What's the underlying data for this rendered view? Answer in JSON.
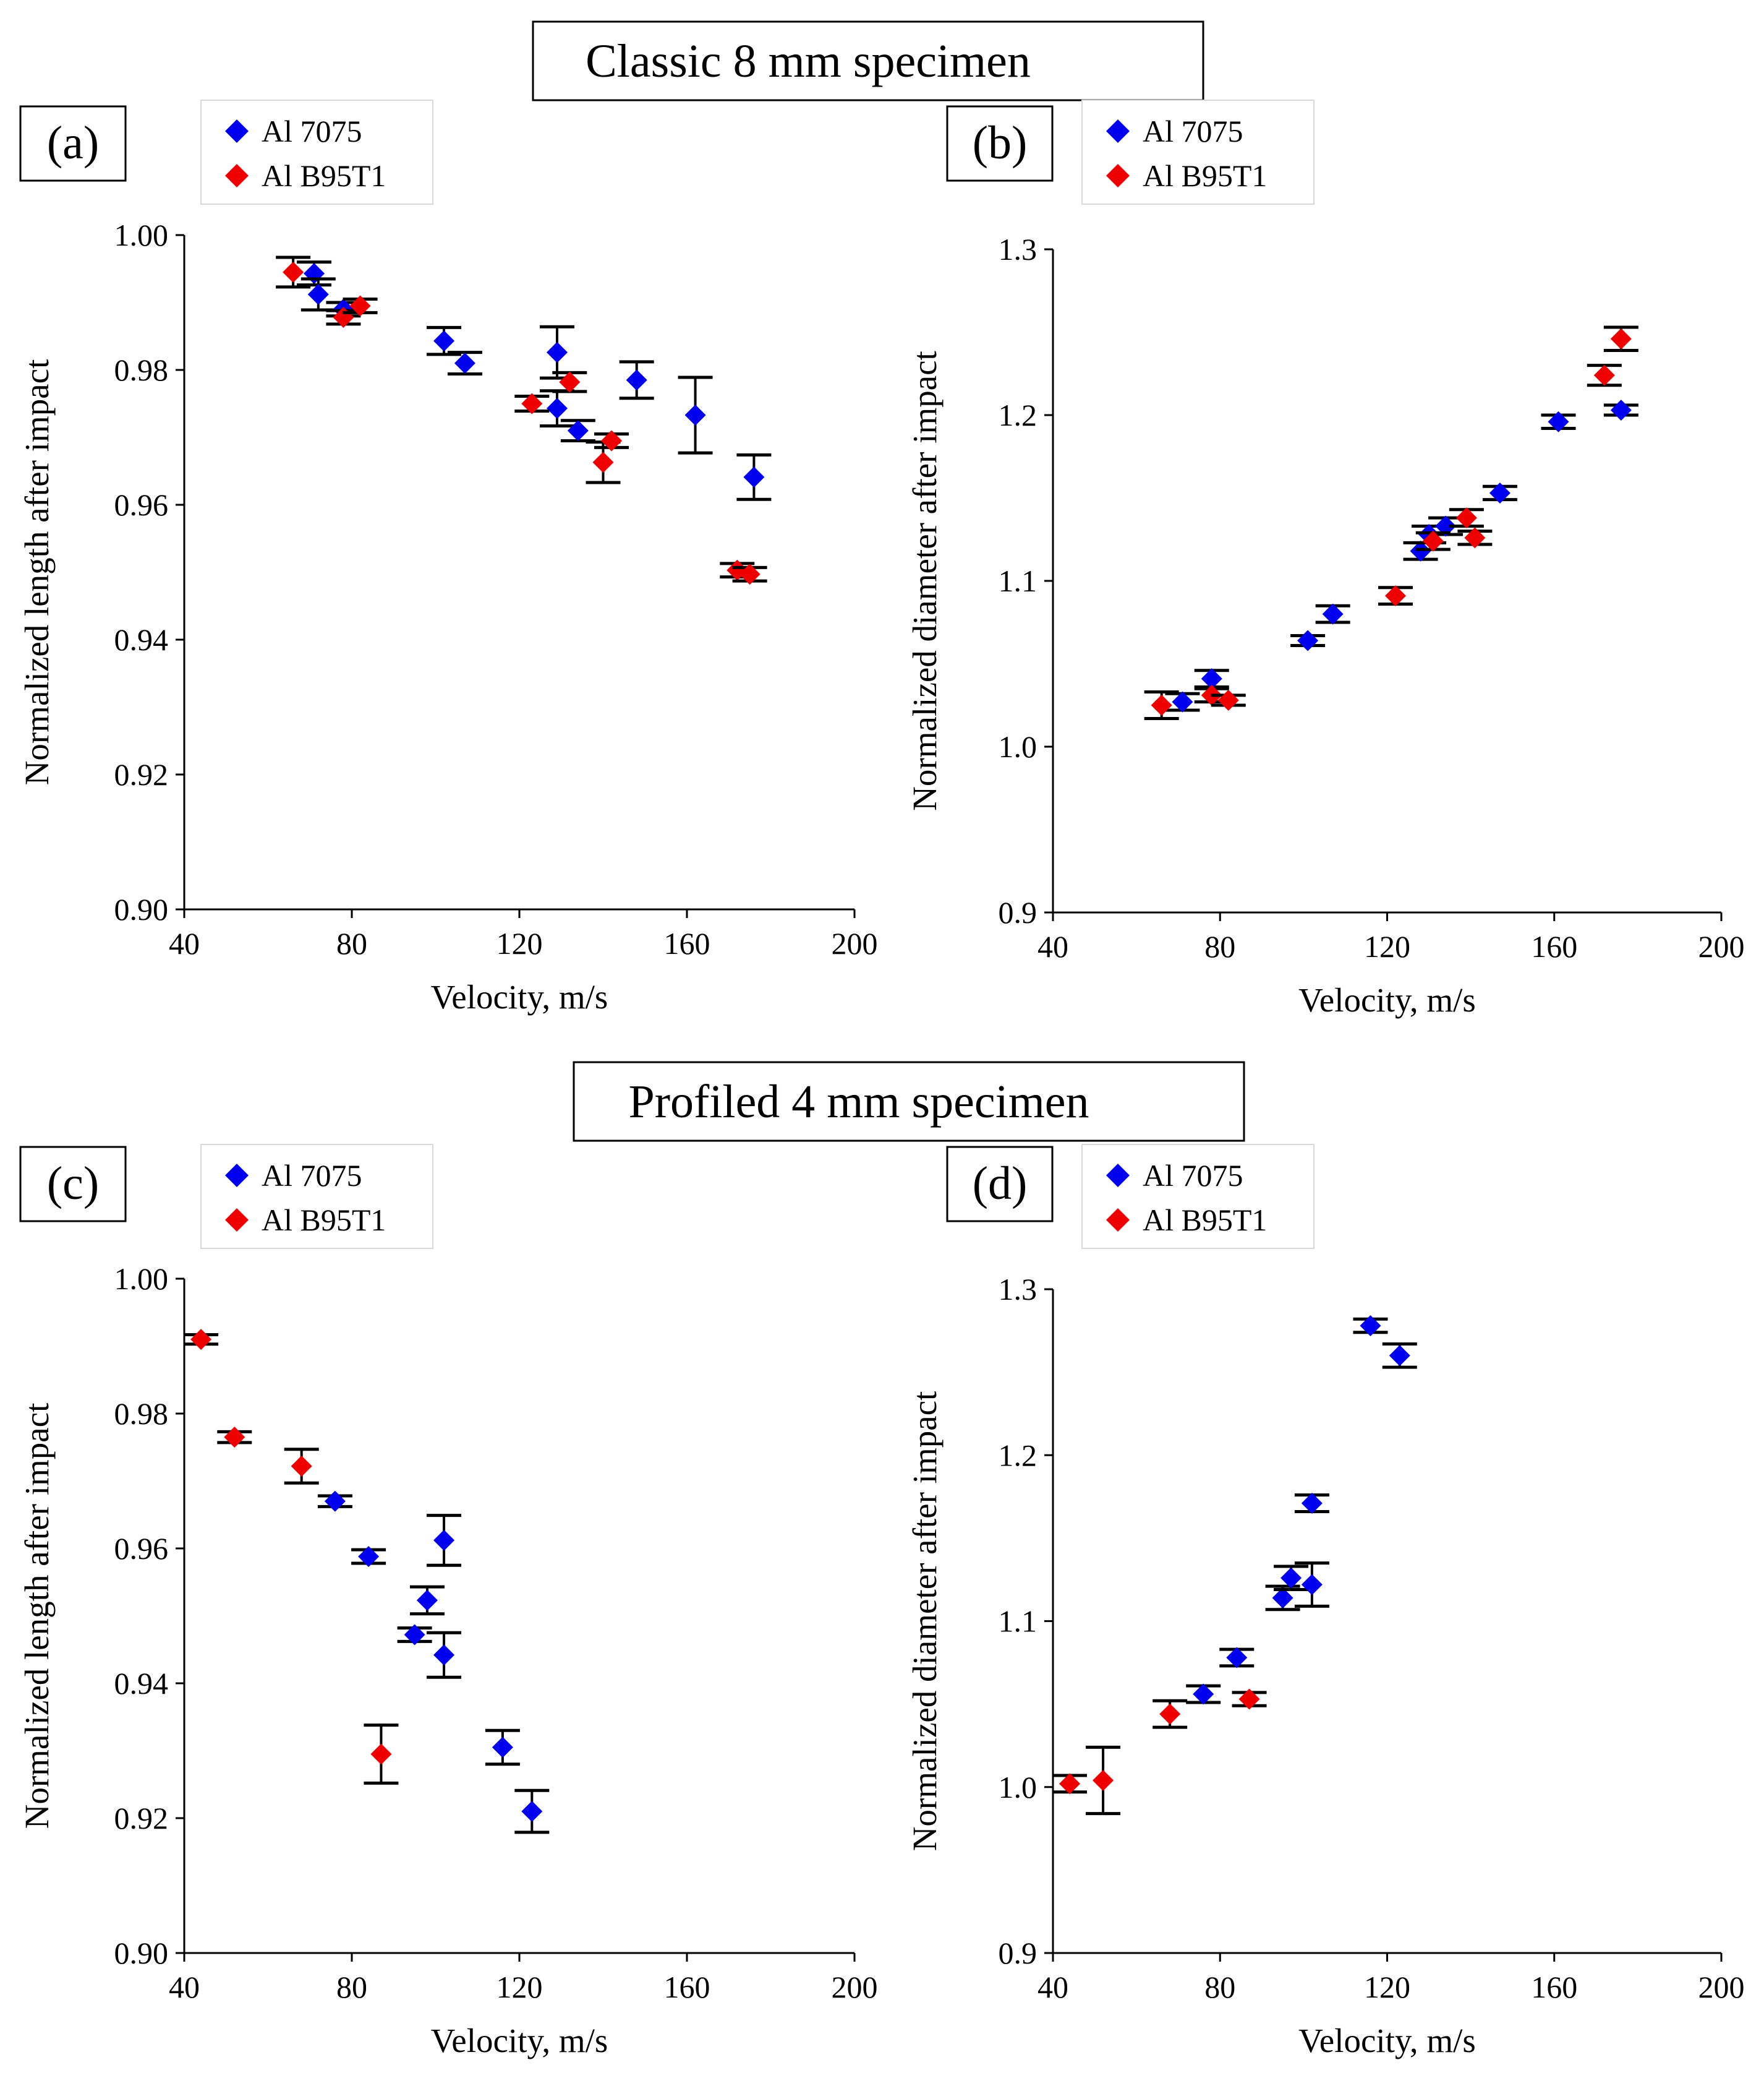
{
  "figure": {
    "section_titles": [
      "Classic 8 mm specimen",
      "Profiled 4 mm specimen"
    ]
  },
  "colors": {
    "al_7075": "#0000ee",
    "al_b95t1": "#ee0000",
    "axis": "#000000",
    "error_bar": "#000000"
  },
  "chart_data": [
    {
      "panel": "(a)",
      "type": "scatter",
      "xlabel": "Velocity, m/s",
      "ylabel": "Normalized length after impact",
      "xlim": [
        40,
        200
      ],
      "ylim": [
        0.9,
        1.0
      ],
      "xticks": [
        40,
        80,
        120,
        160,
        200
      ],
      "yticks": [
        0.9,
        0.92,
        0.94,
        0.96,
        0.98,
        1.0
      ],
      "ytick_labels": [
        "0.90",
        "0.92",
        "0.94",
        "0.96",
        "0.98",
        "1.00"
      ],
      "legend": [
        "Al 7075",
        "Al B95T1"
      ],
      "series": [
        {
          "name": "Al 7075",
          "points": [
            {
              "x": 71,
              "y": 0.9943,
              "err": 0.0017
            },
            {
              "x": 72,
              "y": 0.9912,
              "err": 0.0023
            },
            {
              "x": 78,
              "y": 0.989,
              "err": 0.001
            },
            {
              "x": 102,
              "y": 0.9843,
              "err": 0.002
            },
            {
              "x": 107,
              "y": 0.981,
              "err": 0.0016
            },
            {
              "x": 129,
              "y": 0.9826,
              "err": 0.0038
            },
            {
              "x": 129,
              "y": 0.9743,
              "err": 0.0026
            },
            {
              "x": 134,
              "y": 0.971,
              "err": 0.0015
            },
            {
              "x": 148,
              "y": 0.9785,
              "err": 0.0027
            },
            {
              "x": 162,
              "y": 0.9733,
              "err": 0.0056
            },
            {
              "x": 176,
              "y": 0.9641,
              "err": 0.0033
            }
          ]
        },
        {
          "name": "Al B95T1",
          "points": [
            {
              "x": 66,
              "y": 0.9945,
              "err": 0.0022
            },
            {
              "x": 78,
              "y": 0.9878,
              "err": 0.001
            },
            {
              "x": 82,
              "y": 0.9895,
              "err": 0.001
            },
            {
              "x": 123,
              "y": 0.975,
              "err": 0.0011
            },
            {
              "x": 132,
              "y": 0.9782,
              "err": 0.0014
            },
            {
              "x": 140,
              "y": 0.9663,
              "err": 0.003
            },
            {
              "x": 142,
              "y": 0.9695,
              "err": 0.001
            },
            {
              "x": 172,
              "y": 0.9503,
              "err": 0.001
            },
            {
              "x": 175,
              "y": 0.9497,
              "err": 0.001
            }
          ]
        }
      ]
    },
    {
      "panel": "(b)",
      "type": "scatter",
      "xlabel": "Velocity, m/s",
      "ylabel": "Normalized diameter after impact",
      "xlim": [
        40,
        200
      ],
      "ylim": [
        0.9,
        1.3
      ],
      "xticks": [
        40,
        80,
        120,
        160,
        200
      ],
      "yticks": [
        0.9,
        1.0,
        1.1,
        1.2,
        1.3
      ],
      "ytick_labels": [
        "0.9",
        "1.0",
        "1.1",
        "1.2",
        "1.3"
      ],
      "legend": [
        "Al 7075",
        "Al B95T1"
      ],
      "series": [
        {
          "name": "Al 7075",
          "points": [
            {
              "x": 71,
              "y": 1.027,
              "err": 0.005
            },
            {
              "x": 78,
              "y": 1.041,
              "err": 0.005
            },
            {
              "x": 101,
              "y": 1.064,
              "err": 0.003
            },
            {
              "x": 107,
              "y": 1.08,
              "err": 0.005
            },
            {
              "x": 128,
              "y": 1.118,
              "err": 0.005
            },
            {
              "x": 130,
              "y": 1.128,
              "err": 0.005
            },
            {
              "x": 134,
              "y": 1.133,
              "err": 0.005
            },
            {
              "x": 147,
              "y": 1.153,
              "err": 0.004
            },
            {
              "x": 161,
              "y": 1.196,
              "err": 0.004
            },
            {
              "x": 176,
              "y": 1.203,
              "err": 0.003
            }
          ]
        },
        {
          "name": "Al B95T1",
          "points": [
            {
              "x": 66,
              "y": 1.025,
              "err": 0.008
            },
            {
              "x": 78,
              "y": 1.031,
              "err": 0.004
            },
            {
              "x": 82,
              "y": 1.028,
              "err": 0.003
            },
            {
              "x": 122,
              "y": 1.091,
              "err": 0.005
            },
            {
              "x": 131,
              "y": 1.124,
              "err": 0.005
            },
            {
              "x": 139,
              "y": 1.138,
              "err": 0.005
            },
            {
              "x": 141,
              "y": 1.126,
              "err": 0.004
            },
            {
              "x": 172,
              "y": 1.224,
              "err": 0.006
            },
            {
              "x": 176,
              "y": 1.246,
              "err": 0.007
            }
          ]
        }
      ]
    },
    {
      "panel": "(c)",
      "type": "scatter",
      "xlabel": "Velocity, m/s",
      "ylabel": "Normalized length after impact",
      "xlim": [
        40,
        200
      ],
      "ylim": [
        0.9,
        1.0
      ],
      "xticks": [
        40,
        80,
        120,
        160,
        200
      ],
      "yticks": [
        0.9,
        0.92,
        0.94,
        0.96,
        0.98,
        1.0
      ],
      "ytick_labels": [
        "0.90",
        "0.92",
        "0.94",
        "0.96",
        "0.98",
        "1.00"
      ],
      "legend": [
        "Al 7075",
        "Al B95T1"
      ],
      "series": [
        {
          "name": "Al 7075",
          "points": [
            {
              "x": 76,
              "y": 0.967,
              "err": 0.0008
            },
            {
              "x": 84,
              "y": 0.9588,
              "err": 0.001
            },
            {
              "x": 95,
              "y": 0.9472,
              "err": 0.001
            },
            {
              "x": 98,
              "y": 0.9523,
              "err": 0.002
            },
            {
              "x": 102,
              "y": 0.9612,
              "err": 0.0037
            },
            {
              "x": 102,
              "y": 0.9442,
              "err": 0.0033
            },
            {
              "x": 116,
              "y": 0.9305,
              "err": 0.0025
            },
            {
              "x": 123,
              "y": 0.921,
              "err": 0.0031
            }
          ]
        },
        {
          "name": "Al B95T1",
          "points": [
            {
              "x": 44,
              "y": 0.991,
              "err": 0.0007
            },
            {
              "x": 52,
              "y": 0.9765,
              "err": 0.0008
            },
            {
              "x": 68,
              "y": 0.9722,
              "err": 0.0025
            },
            {
              "x": 87,
              "y": 0.9295,
              "err": 0.0043
            }
          ]
        }
      ]
    },
    {
      "panel": "(d)",
      "type": "scatter",
      "xlabel": "Velocity, m/s",
      "ylabel": "Normalized diameter after impact",
      "xlim": [
        40,
        200
      ],
      "ylim": [
        0.9,
        1.3
      ],
      "xticks": [
        40,
        80,
        120,
        160,
        200
      ],
      "yticks": [
        0.9,
        1.0,
        1.1,
        1.2,
        1.3
      ],
      "ytick_labels": [
        "0.9",
        "1.0",
        "1.1",
        "1.2",
        "1.3"
      ],
      "legend": [
        "Al 7075",
        "Al B95T1"
      ],
      "series": [
        {
          "name": "Al 7075",
          "points": [
            {
              "x": 76,
              "y": 1.056,
              "err": 0.005
            },
            {
              "x": 84,
              "y": 1.078,
              "err": 0.005
            },
            {
              "x": 95,
              "y": 1.114,
              "err": 0.007
            },
            {
              "x": 97,
              "y": 1.126,
              "err": 0.007
            },
            {
              "x": 102,
              "y": 1.171,
              "err": 0.005
            },
            {
              "x": 102,
              "y": 1.122,
              "err": 0.013
            },
            {
              "x": 116,
              "y": 1.278,
              "err": 0.004
            },
            {
              "x": 123,
              "y": 1.26,
              "err": 0.007
            }
          ]
        },
        {
          "name": "Al B95T1",
          "points": [
            {
              "x": 44,
              "y": 1.002,
              "err": 0.005
            },
            {
              "x": 52,
              "y": 1.004,
              "err": 0.02
            },
            {
              "x": 68,
              "y": 1.044,
              "err": 0.008
            },
            {
              "x": 87,
              "y": 1.053,
              "err": 0.004
            }
          ]
        }
      ]
    }
  ]
}
